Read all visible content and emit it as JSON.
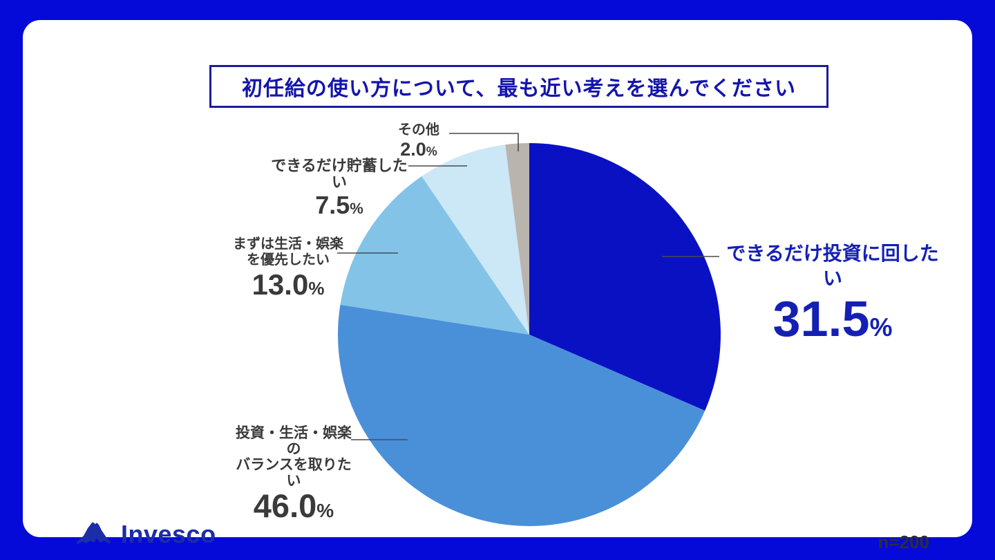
{
  "title": "初任給の使い方について、最も近い考えを選んでください",
  "chart_data": {
    "type": "pie",
    "title": "初任給の使い方について、最も近い考えを選んでください",
    "categories": [
      "できるだけ投資に回したい",
      "投資・生活・娯楽のバランスを取りたい",
      "まずは生活・娯楽を優先したい",
      "できるだけ貯蓄したい",
      "その他"
    ],
    "values": [
      31.5,
      46.0,
      13.0,
      7.5,
      2.0
    ],
    "colors": [
      "#0a11c3",
      "#4a90d9",
      "#83c3e8",
      "#cce7f6",
      "#b9b4ae"
    ],
    "start_angle": "12-oclock",
    "direction": "clockwise",
    "legend_position": "callout-labels",
    "sample_size": "n=200"
  },
  "callouts": [
    {
      "line1": "できるだけ投資に回したい",
      "pct": "31.5",
      "unit": "%"
    },
    {
      "line1": "投資・生活・娯楽の",
      "line2": "バランスを取りたい",
      "pct": "46.0",
      "unit": "%"
    },
    {
      "line1": "まずは生活・娯楽",
      "line2": "を優先したい",
      "pct": "13.0",
      "unit": "%"
    },
    {
      "line1": "できるだけ貯蓄したい",
      "pct": "7.5",
      "unit": "%"
    },
    {
      "line1": "その他",
      "pct": "2.0",
      "unit": "%"
    }
  ],
  "footer": {
    "brand": "Invesco",
    "sample_size": "n=200"
  },
  "colors": {
    "frame_blue": "#050ad8",
    "title_text": "#1414ad",
    "title_border": "#1c1c9b",
    "accent_label_blue": "#1420b4",
    "dark_label_text": "#3a3a3a",
    "logo_blue": "#1b2da8",
    "leader_line": "#4a4a4a"
  }
}
